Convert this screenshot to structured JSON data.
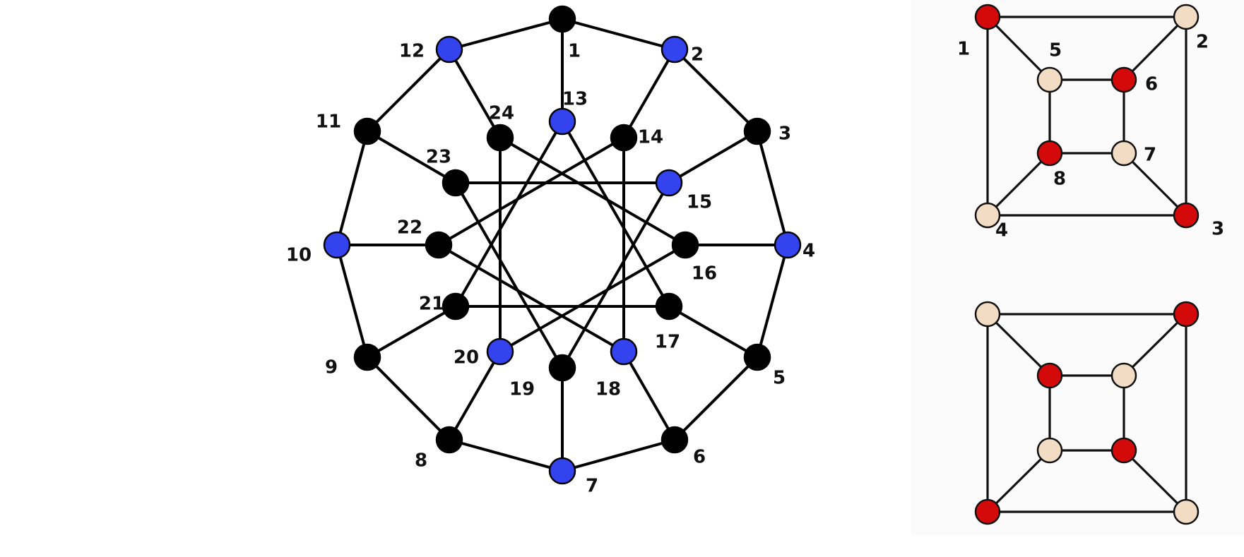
{
  "colors": {
    "black_node": "#000000",
    "blue_node": "#3344ee",
    "red_node": "#d40a0a",
    "cream_node": "#f3dcc4"
  },
  "graph_a": {
    "nodes": [
      {
        "id": "1",
        "label": "1",
        "color": "black"
      },
      {
        "id": "2",
        "label": "2",
        "color": "blue"
      },
      {
        "id": "3",
        "label": "3",
        "color": "black"
      },
      {
        "id": "4",
        "label": "4",
        "color": "blue"
      },
      {
        "id": "5",
        "label": "5",
        "color": "black"
      },
      {
        "id": "6",
        "label": "6",
        "color": "black"
      },
      {
        "id": "7",
        "label": "7",
        "color": "blue"
      },
      {
        "id": "8",
        "label": "8",
        "color": "black"
      },
      {
        "id": "9",
        "label": "9",
        "color": "black"
      },
      {
        "id": "10",
        "label": "10",
        "color": "blue"
      },
      {
        "id": "11",
        "label": "11",
        "color": "black"
      },
      {
        "id": "12",
        "label": "12",
        "color": "blue"
      },
      {
        "id": "13",
        "label": "13",
        "color": "blue"
      },
      {
        "id": "14",
        "label": "14",
        "color": "black"
      },
      {
        "id": "15",
        "label": "15",
        "color": "blue"
      },
      {
        "id": "16",
        "label": "16",
        "color": "black"
      },
      {
        "id": "17",
        "label": "17",
        "color": "black"
      },
      {
        "id": "18",
        "label": "18",
        "color": "blue"
      },
      {
        "id": "19",
        "label": "19",
        "color": "black"
      },
      {
        "id": "20",
        "label": "20",
        "color": "blue"
      },
      {
        "id": "21",
        "label": "21",
        "color": "black"
      },
      {
        "id": "22",
        "label": "22",
        "color": "black"
      },
      {
        "id": "23",
        "label": "23",
        "color": "black"
      },
      {
        "id": "24",
        "label": "24",
        "color": "black"
      }
    ],
    "edges": [
      [
        "1",
        "2"
      ],
      [
        "2",
        "3"
      ],
      [
        "3",
        "4"
      ],
      [
        "4",
        "5"
      ],
      [
        "5",
        "6"
      ],
      [
        "6",
        "7"
      ],
      [
        "7",
        "8"
      ],
      [
        "8",
        "9"
      ],
      [
        "9",
        "10"
      ],
      [
        "10",
        "11"
      ],
      [
        "11",
        "12"
      ],
      [
        "12",
        "1"
      ],
      [
        "1",
        "13"
      ],
      [
        "2",
        "14"
      ],
      [
        "3",
        "15"
      ],
      [
        "4",
        "16"
      ],
      [
        "5",
        "17"
      ],
      [
        "6",
        "18"
      ],
      [
        "7",
        "19"
      ],
      [
        "8",
        "20"
      ],
      [
        "9",
        "21"
      ],
      [
        "10",
        "22"
      ],
      [
        "11",
        "23"
      ],
      [
        "12",
        "24"
      ],
      [
        "13",
        "17"
      ],
      [
        "13",
        "21"
      ],
      [
        "14",
        "18"
      ],
      [
        "14",
        "22"
      ],
      [
        "15",
        "19"
      ],
      [
        "15",
        "23"
      ],
      [
        "16",
        "20"
      ],
      [
        "16",
        "24"
      ],
      [
        "17",
        "21"
      ],
      [
        "18",
        "22"
      ],
      [
        "19",
        "23"
      ],
      [
        "20",
        "24"
      ]
    ]
  },
  "graph_b": {
    "nodes": [
      {
        "id": "1",
        "label": "1",
        "color": "red"
      },
      {
        "id": "2",
        "label": "2",
        "color": "cream"
      },
      {
        "id": "3",
        "label": "3",
        "color": "red"
      },
      {
        "id": "4",
        "label": "4",
        "color": "cream"
      },
      {
        "id": "5",
        "label": "5",
        "color": "cream"
      },
      {
        "id": "6",
        "label": "6",
        "color": "red"
      },
      {
        "id": "7",
        "label": "7",
        "color": "cream"
      },
      {
        "id": "8",
        "label": "8",
        "color": "red"
      }
    ],
    "edges": [
      [
        "1",
        "2"
      ],
      [
        "2",
        "3"
      ],
      [
        "3",
        "4"
      ],
      [
        "4",
        "1"
      ],
      [
        "5",
        "6"
      ],
      [
        "6",
        "7"
      ],
      [
        "7",
        "8"
      ],
      [
        "8",
        "5"
      ],
      [
        "1",
        "5"
      ],
      [
        "2",
        "6"
      ],
      [
        "3",
        "7"
      ],
      [
        "4",
        "8"
      ]
    ]
  },
  "graph_c": {
    "nodes": [
      {
        "id": "1",
        "color": "cream"
      },
      {
        "id": "2",
        "color": "red"
      },
      {
        "id": "3",
        "color": "cream"
      },
      {
        "id": "4",
        "color": "red"
      },
      {
        "id": "5",
        "color": "red"
      },
      {
        "id": "6",
        "color": "cream"
      },
      {
        "id": "7",
        "color": "red"
      },
      {
        "id": "8",
        "color": "cream"
      }
    ],
    "edges": [
      [
        "1",
        "2"
      ],
      [
        "2",
        "3"
      ],
      [
        "3",
        "4"
      ],
      [
        "4",
        "1"
      ],
      [
        "5",
        "6"
      ],
      [
        "6",
        "7"
      ],
      [
        "7",
        "8"
      ],
      [
        "8",
        "5"
      ],
      [
        "1",
        "5"
      ],
      [
        "2",
        "6"
      ],
      [
        "3",
        "7"
      ],
      [
        "4",
        "8"
      ]
    ]
  }
}
